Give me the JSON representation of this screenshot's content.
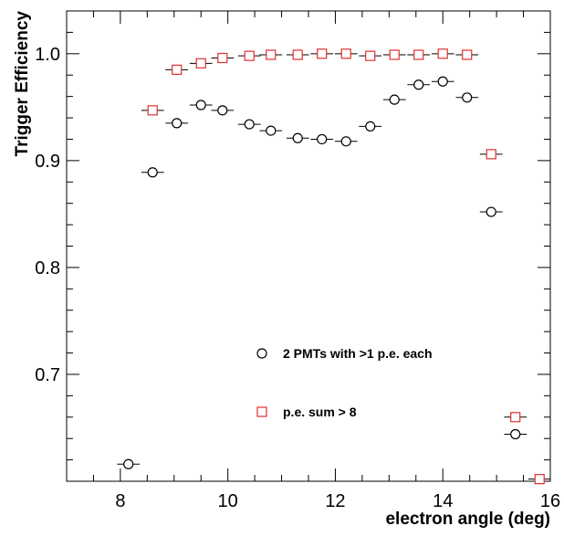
{
  "chart_data": {
    "type": "scatter",
    "xlabel": "electron angle (deg)",
    "ylabel": "Trigger Efficiency",
    "xlim": [
      7.0,
      16.0
    ],
    "ylim": [
      0.6,
      1.04
    ],
    "x_ticks": [
      8,
      10,
      12,
      14,
      16
    ],
    "x_tick_labels": [
      "8",
      "10",
      "12",
      "14",
      "16"
    ],
    "y_ticks": [
      0.7,
      0.8,
      0.9,
      1.0
    ],
    "y_tick_labels": [
      "0.7",
      "0.8",
      "0.9",
      "1.0"
    ],
    "grid": false,
    "legend_position": "lower-center",
    "series": [
      {
        "name": "2 PMTs with >1 p.e. each",
        "marker": "open-circle",
        "color": "#000000",
        "x_err": 0.21,
        "points": [
          {
            "x": 8.15,
            "y": 0.616
          },
          {
            "x": 8.6,
            "y": 0.889
          },
          {
            "x": 9.05,
            "y": 0.935
          },
          {
            "x": 9.5,
            "y": 0.952
          },
          {
            "x": 9.9,
            "y": 0.947
          },
          {
            "x": 10.4,
            "y": 0.934
          },
          {
            "x": 10.8,
            "y": 0.928
          },
          {
            "x": 11.3,
            "y": 0.921
          },
          {
            "x": 11.75,
            "y": 0.92
          },
          {
            "x": 12.2,
            "y": 0.918
          },
          {
            "x": 12.65,
            "y": 0.932
          },
          {
            "x": 13.1,
            "y": 0.957
          },
          {
            "x": 13.55,
            "y": 0.971
          },
          {
            "x": 14.0,
            "y": 0.974
          },
          {
            "x": 14.45,
            "y": 0.959
          },
          {
            "x": 14.9,
            "y": 0.852
          },
          {
            "x": 15.35,
            "y": 0.644
          }
        ]
      },
      {
        "name": "p.e. sum > 8",
        "marker": "open-square",
        "color": "#e03030",
        "x_err": 0.21,
        "points": [
          {
            "x": 8.6,
            "y": 0.947
          },
          {
            "x": 9.05,
            "y": 0.985
          },
          {
            "x": 9.5,
            "y": 0.991
          },
          {
            "x": 9.9,
            "y": 0.996
          },
          {
            "x": 10.4,
            "y": 0.998
          },
          {
            "x": 10.8,
            "y": 0.999
          },
          {
            "x": 11.3,
            "y": 0.999
          },
          {
            "x": 11.75,
            "y": 1.0
          },
          {
            "x": 12.2,
            "y": 1.0
          },
          {
            "x": 12.65,
            "y": 0.998
          },
          {
            "x": 13.1,
            "y": 0.999
          },
          {
            "x": 13.55,
            "y": 0.999
          },
          {
            "x": 14.0,
            "y": 1.0
          },
          {
            "x": 14.45,
            "y": 0.999
          },
          {
            "x": 14.9,
            "y": 0.906
          },
          {
            "x": 15.35,
            "y": 0.66
          },
          {
            "x": 15.8,
            "y": 0.602
          }
        ]
      }
    ]
  }
}
